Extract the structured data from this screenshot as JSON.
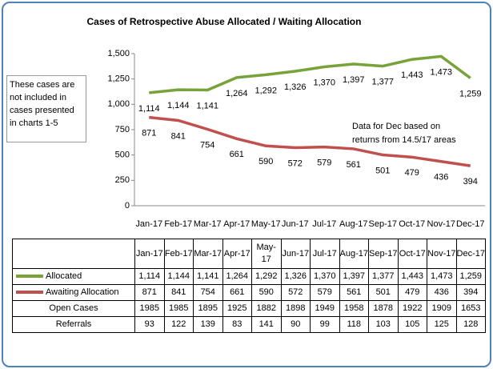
{
  "chart_data": {
    "type": "line",
    "title": "Cases of Retrospective Abuse Allocated / Waiting Allocation",
    "categories": [
      "Jan-17",
      "Feb-17",
      "Mar-17",
      "Apr-17",
      "May-17",
      "Jun-17",
      "Jul-17",
      "Aug-17",
      "Sep-17",
      "Oct-17",
      "Nov-17",
      "Dec-17"
    ],
    "series": [
      {
        "name": "Allocated",
        "color": "#77a33a",
        "values": [
          1114,
          1144,
          1141,
          1264,
          1292,
          1326,
          1370,
          1397,
          1377,
          1443,
          1473,
          1259
        ],
        "value_labels": [
          "1,114",
          "1,144",
          "1,141",
          "1,264",
          "1,292",
          "1,326",
          "1,370",
          "1,397",
          "1,377",
          "1,443",
          "1,473",
          "1,259"
        ]
      },
      {
        "name": "Awaiting Allocation",
        "color": "#c0504d",
        "values": [
          871,
          841,
          754,
          661,
          590,
          572,
          579,
          561,
          501,
          479,
          436,
          394
        ]
      }
    ],
    "ylim": [
      0,
      1500
    ],
    "yticks": [
      0,
      250,
      500,
      750,
      {
        "value": 1000,
        "label": "1,000"
      },
      {
        "value": 1250,
        "label": "1,250"
      },
      {
        "value": 1500,
        "label": "1,500"
      }
    ],
    "annotations": [
      "These cases are not included in cases presented in charts 1-5",
      "Data for Dec based on returns from 14.5/17 areas"
    ],
    "table_rows": [
      {
        "name": "Open Cases",
        "values": [
          1985,
          1985,
          1895,
          1925,
          1882,
          1898,
          1949,
          1958,
          1878,
          1922,
          1909,
          1653
        ]
      },
      {
        "name": "Referrals",
        "values": [
          93,
          122,
          139,
          83,
          141,
          90,
          99,
          118,
          103,
          105,
          125,
          128
        ]
      }
    ]
  }
}
